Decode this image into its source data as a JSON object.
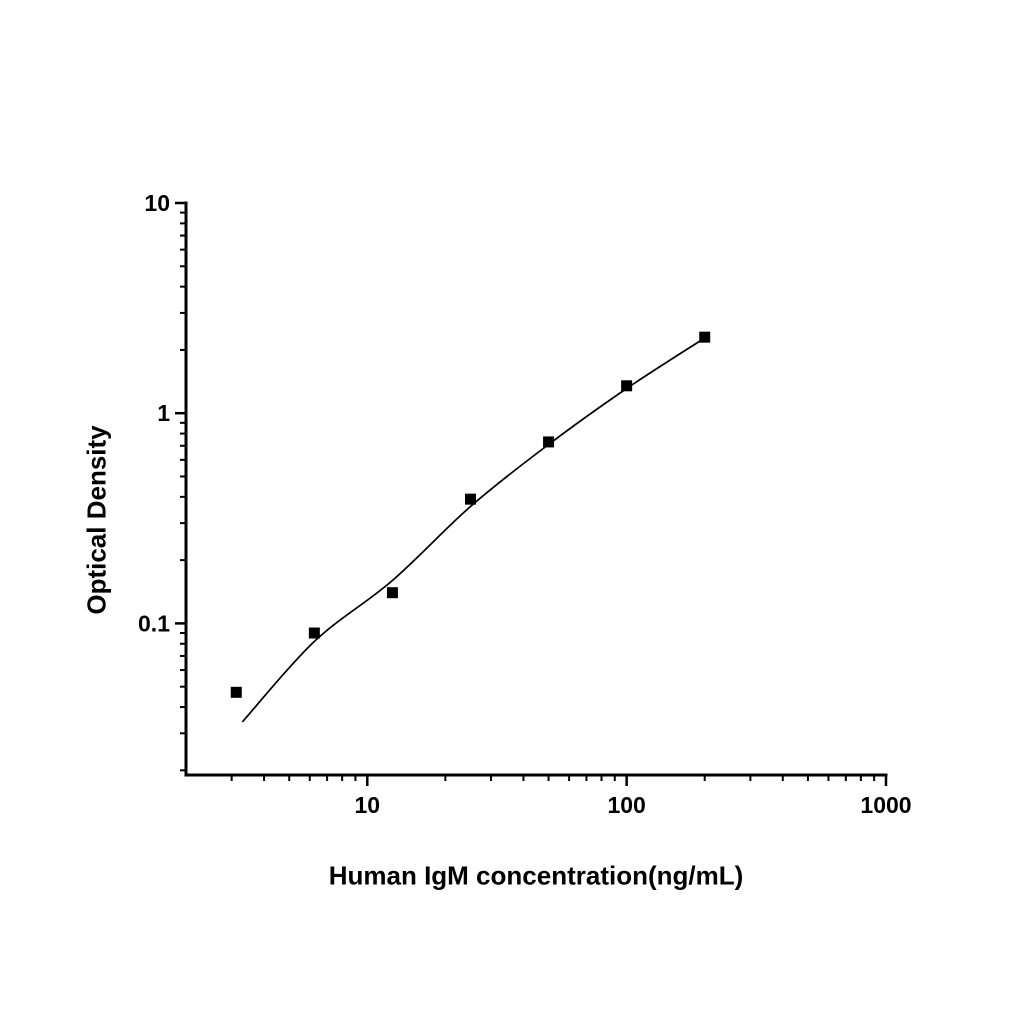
{
  "figure": {
    "background_color": "#ffffff",
    "foreground_color": "#000000"
  },
  "chart_data": {
    "type": "scatter",
    "title": "",
    "xlabel": "Human IgM concentration(ng/mL)",
    "ylabel": "Optical Density",
    "x_scale": "log",
    "y_scale": "log",
    "xlim": [
      2,
      1000
    ],
    "ylim": [
      0.019,
      10
    ],
    "x_ticks": [
      10,
      100,
      1000
    ],
    "x_tick_labels": [
      "10",
      "100",
      "1000"
    ],
    "y_ticks": [
      0.1,
      1,
      10
    ],
    "y_tick_labels": [
      "0.1",
      "1",
      "10"
    ],
    "grid": false,
    "legend": null,
    "marker": {
      "shape": "square",
      "color": "#000000",
      "size": 11
    },
    "line_color": "#000000",
    "points": {
      "x": [
        3.125,
        6.25,
        12.5,
        25,
        50,
        100,
        200
      ],
      "y": [
        0.047,
        0.09,
        0.14,
        0.39,
        0.73,
        1.35,
        2.3
      ]
    },
    "fit_curve": {
      "x": [
        3.3,
        6.25,
        12.5,
        25,
        50,
        100,
        200
      ],
      "y": [
        0.034,
        0.082,
        0.16,
        0.36,
        0.71,
        1.31,
        2.28
      ]
    }
  }
}
